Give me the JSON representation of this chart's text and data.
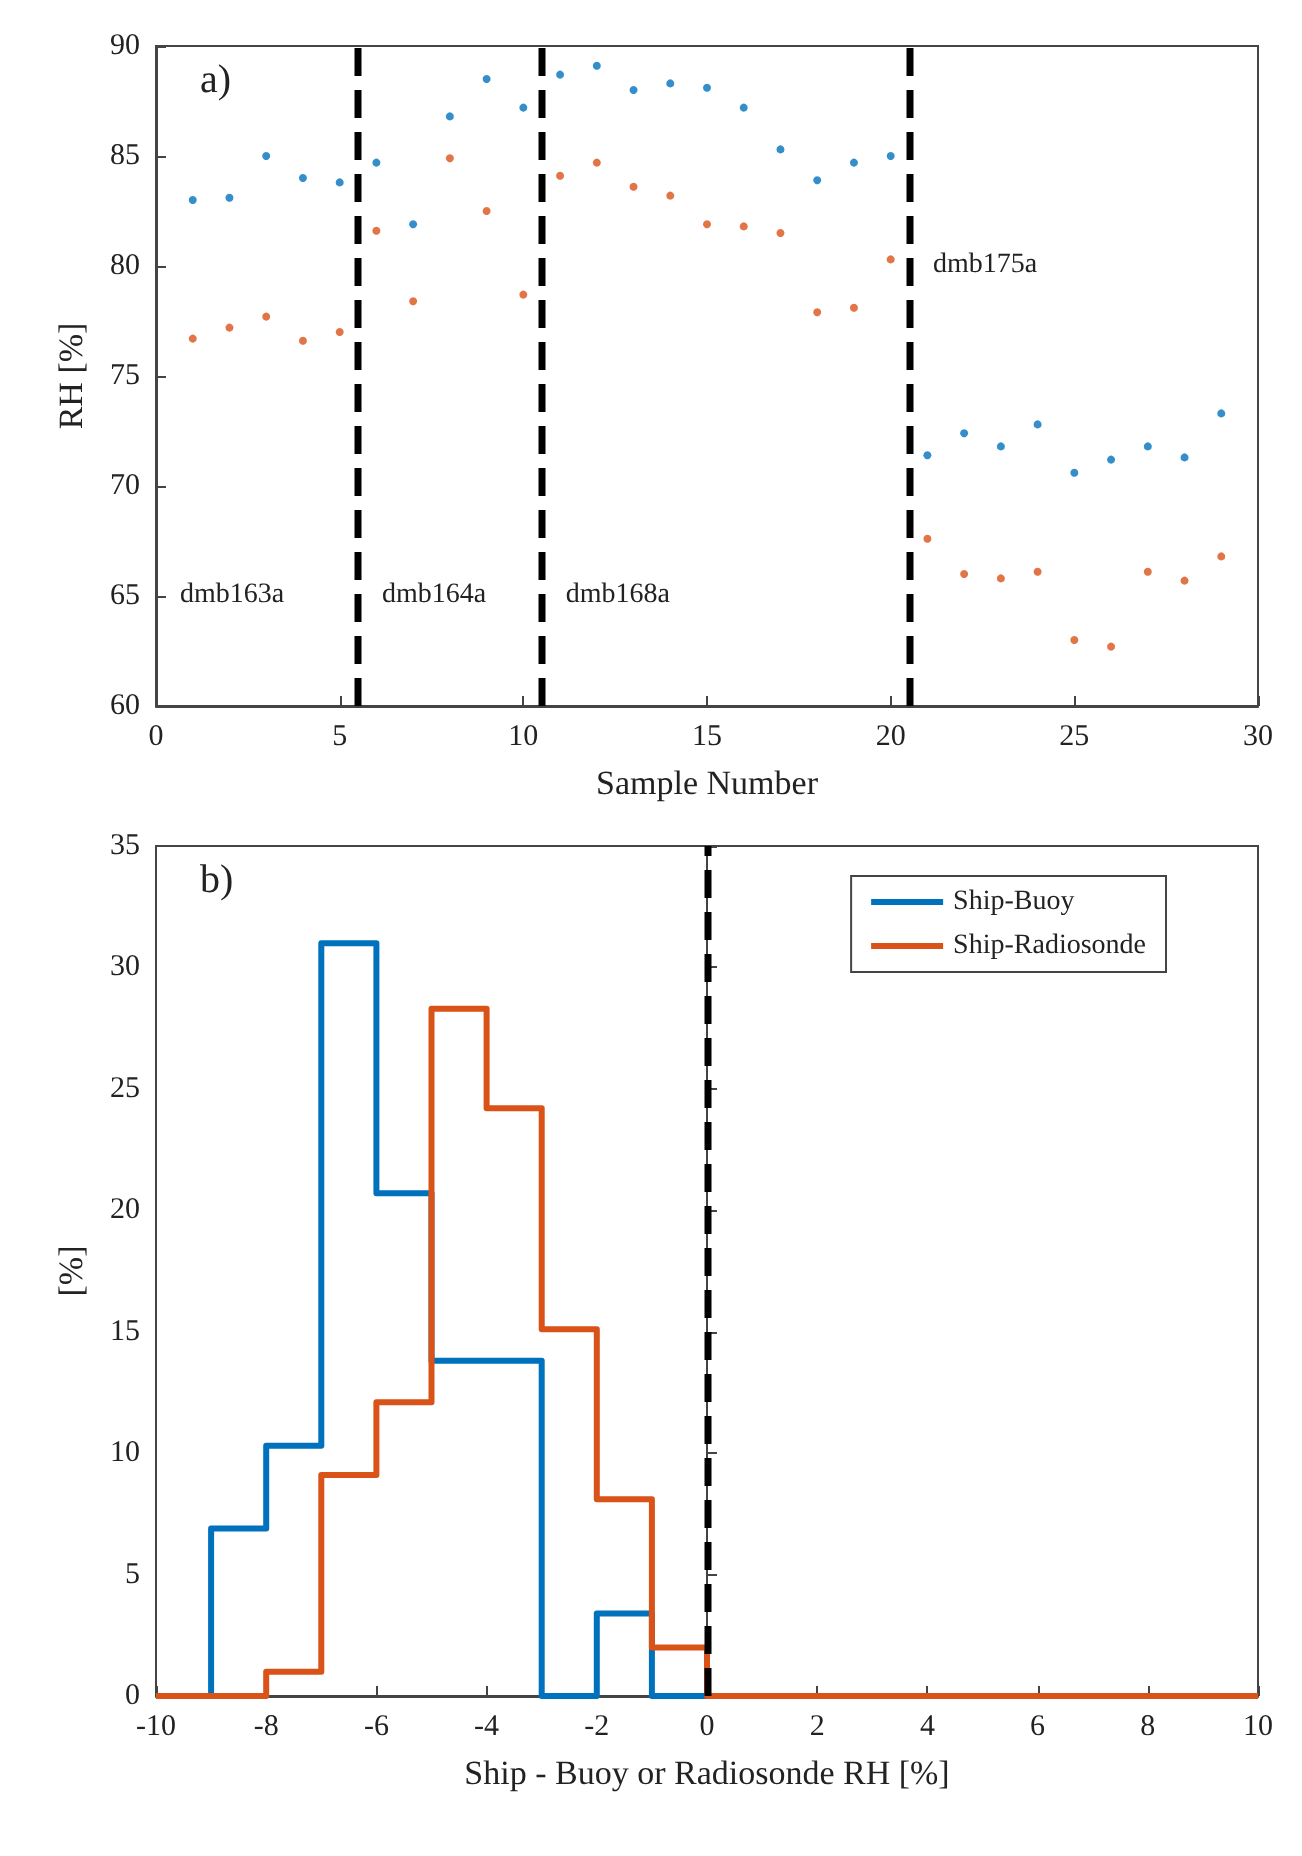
{
  "chart_data": [
    {
      "type": "scatter",
      "xlabel": "Sample Number",
      "ylabel": "RH [%]",
      "x": [
        1,
        2,
        3,
        4,
        5,
        6,
        7,
        8,
        9,
        10,
        11,
        12,
        13,
        14,
        15,
        16,
        17,
        18,
        19,
        20,
        21,
        22,
        23,
        24,
        25,
        26,
        27,
        28,
        29
      ],
      "series": [
        {
          "color": "#0072bd",
          "values": [
            83.0,
            83.1,
            85.0,
            84.0,
            83.8,
            84.7,
            81.9,
            86.8,
            88.5,
            87.2,
            88.7,
            89.1,
            88.0,
            88.3,
            88.1,
            87.2,
            85.3,
            83.9,
            84.7,
            85.0,
            71.4,
            72.4,
            71.8,
            72.8,
            70.6,
            71.2,
            71.8,
            71.3,
            73.3
          ]
        },
        {
          "color": "#d95319",
          "values": [
            76.7,
            77.2,
            77.7,
            76.6,
            77.0,
            81.6,
            78.4,
            84.9,
            82.5,
            78.7,
            84.1,
            84.7,
            83.6,
            83.2,
            81.9,
            81.8,
            81.5,
            77.9,
            78.1,
            80.3,
            67.6,
            66.0,
            65.8,
            66.1,
            63.0,
            62.7,
            66.1,
            65.7,
            66.8
          ]
        }
      ],
      "marker": "circle",
      "xlim": [
        0,
        30
      ],
      "xticks": [
        0,
        5,
        10,
        15,
        20,
        25,
        30
      ],
      "ylim": [
        60,
        90
      ],
      "yticks": [
        60,
        65,
        70,
        75,
        80,
        85,
        90
      ],
      "ref_lines": [
        {
          "axis": "x",
          "value": 5.5,
          "color": "#000000",
          "line_style": "dashed"
        },
        {
          "axis": "x",
          "value": 10.5,
          "color": "#000000",
          "line_style": "dashed"
        },
        {
          "axis": "x",
          "value": 20.5,
          "color": "#000000",
          "line_style": "dashed"
        }
      ],
      "annotations": [
        "a)",
        "dmb163a",
        "dmb164a",
        "dmb168a",
        "dmb175a"
      ]
    },
    {
      "type": "histogram",
      "xlabel": "Ship - Buoy or Radiosonde RH [%]",
      "ylabel": "[%]",
      "bins": [
        -10,
        -9,
        -8,
        -7,
        -6,
        -5,
        -4,
        -3,
        -2,
        -1,
        0,
        1,
        2,
        3,
        4,
        5,
        6,
        7,
        8,
        9,
        10
      ],
      "series": [
        {
          "name": "Ship-Buoy",
          "color": "#0072bd",
          "values": [
            0,
            6.9,
            10.3,
            31.0,
            20.7,
            13.8,
            13.8,
            0,
            3.4,
            0,
            0,
            0,
            0,
            0,
            0,
            0,
            0,
            0,
            0,
            0
          ]
        },
        {
          "name": "Ship-Radiosonde",
          "color": "#d95319",
          "values": [
            0,
            0,
            1.0,
            9.1,
            12.1,
            28.3,
            24.2,
            15.1,
            8.1,
            2.0,
            0,
            0,
            0,
            0,
            0,
            0,
            0,
            0,
            0,
            0
          ]
        }
      ],
      "xlim": [
        -10,
        10
      ],
      "xticks": [
        -10,
        -8,
        -6,
        -4,
        -2,
        0,
        2,
        4,
        6,
        8,
        10
      ],
      "ylim": [
        0,
        35
      ],
      "yticks": [
        0,
        5,
        10,
        15,
        20,
        25,
        30,
        35
      ],
      "legend": "top right",
      "ref_lines": [
        {
          "axis": "x",
          "value": 0,
          "color": "#000000",
          "line_style": "dashed"
        }
      ],
      "annotations": [
        "b)"
      ]
    }
  ]
}
